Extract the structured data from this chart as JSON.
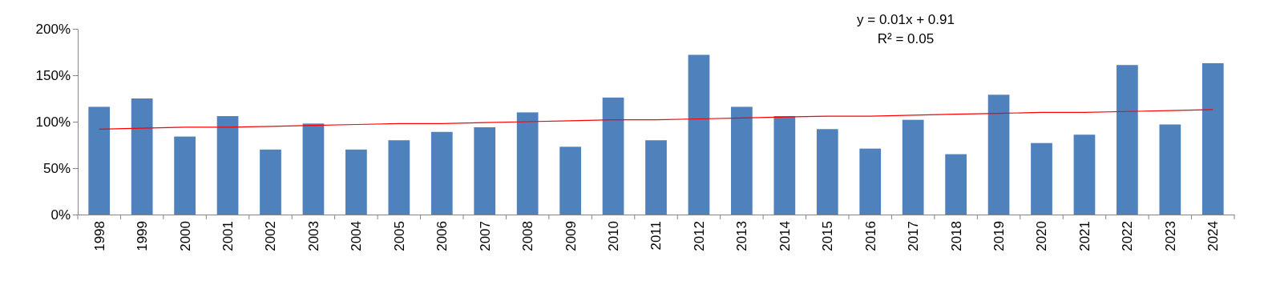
{
  "chart_data": {
    "type": "bar",
    "categories": [
      "1998",
      "1999",
      "2000",
      "2001",
      "2002",
      "2003",
      "2004",
      "2005",
      "2006",
      "2007",
      "2008",
      "2009",
      "2010",
      "2011",
      "2012",
      "2013",
      "2014",
      "2015",
      "2016",
      "2017",
      "2018",
      "2019",
      "2020",
      "2021",
      "2022",
      "2023",
      "2024"
    ],
    "series": [
      {
        "color": "#4f81bd",
        "values": [
          116,
          125,
          84,
          106,
          70,
          98,
          70,
          80,
          89,
          94,
          110,
          73,
          126,
          80,
          172,
          116,
          106,
          92,
          71,
          102,
          65,
          129,
          77,
          86,
          161,
          97,
          163
        ]
      },
      {
        "type": "line",
        "color": "#ff0000",
        "values": [
          92,
          93,
          94,
          94,
          95,
          96,
          97,
          98,
          98,
          99,
          100,
          101,
          102,
          102,
          103,
          104,
          105,
          106,
          106,
          107,
          108,
          109,
          110,
          110,
          111,
          112,
          113
        ]
      }
    ],
    "ylim": [
      0,
      200
    ],
    "yticks": [
      {
        "value": 0,
        "label": "0%"
      },
      {
        "value": 50,
        "label": "50%"
      },
      {
        "value": 100,
        "label": "100%"
      },
      {
        "value": 150,
        "label": "150%"
      },
      {
        "value": 200,
        "label": "200%"
      }
    ],
    "annotations": [
      "y = 0.01x + 0.91",
      "R² = 0.05"
    ],
    "grid": false
  }
}
